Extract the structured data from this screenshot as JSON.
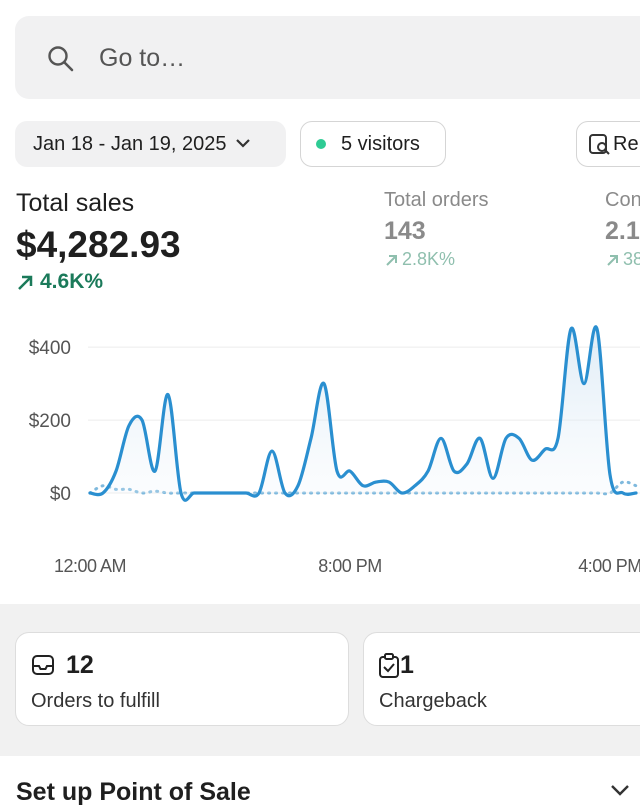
{
  "search": {
    "placeholder": "Go to…"
  },
  "filters": {
    "date_range": "Jan 18 - Jan 19, 2025",
    "visitors": "5 visitors",
    "report": "Re"
  },
  "metrics": [
    {
      "label": "Total sales",
      "value": "$4,282.93",
      "change": "4.6K%"
    },
    {
      "label": "Total orders",
      "value": "143",
      "change": "2.8K%"
    },
    {
      "label": "Con",
      "value": "2.1",
      "change": "38"
    }
  ],
  "chart_data": {
    "type": "line",
    "x": [
      0,
      1,
      2,
      3,
      4,
      5,
      6,
      7,
      8,
      9,
      10,
      11,
      12,
      13,
      14,
      15,
      16,
      17,
      18,
      19,
      20,
      21,
      22,
      23,
      24,
      25,
      26,
      27,
      28,
      29,
      30,
      31,
      32,
      33,
      34,
      35,
      36,
      37,
      38,
      39,
      40,
      41,
      42
    ],
    "series": [
      {
        "color": "#2a8fd0",
        "values": [
          0,
          0,
          60,
          185,
          200,
          60,
          270,
          0,
          0,
          0,
          0,
          0,
          0,
          0,
          115,
          0,
          20,
          150,
          300,
          60,
          60,
          20,
          30,
          30,
          0,
          20,
          60,
          150,
          60,
          80,
          150,
          40,
          150,
          150,
          90,
          120,
          150,
          450,
          300,
          450,
          50,
          0,
          0
        ]
      },
      {
        "color": "#7fb9dd",
        "dashed": true,
        "values": [
          0,
          20,
          10,
          10,
          0,
          5,
          0,
          0,
          0,
          0,
          0,
          0,
          0,
          0,
          0,
          0,
          0,
          0,
          0,
          0,
          0,
          0,
          0,
          0,
          0,
          0,
          0,
          0,
          0,
          0,
          0,
          0,
          0,
          0,
          0,
          0,
          0,
          0,
          0,
          0,
          0,
          30,
          20
        ]
      }
    ],
    "xlim": [
      0,
      42
    ],
    "xticks": [
      {
        "value": 0,
        "label": "12:00 AM"
      },
      {
        "value": 20,
        "label": "8:00 PM"
      },
      {
        "value": 40,
        "label": "4:00 PM"
      }
    ],
    "ylim": [
      0,
      480
    ],
    "yticks": [
      {
        "value": 0,
        "label": "$0"
      },
      {
        "value": 200,
        "label": "$200"
      },
      {
        "value": 400,
        "label": "$400"
      }
    ],
    "grid": true
  },
  "tasks": [
    {
      "count": "12",
      "label": "Orders to fulfill"
    },
    {
      "count": "1",
      "label": "Chargeback"
    }
  ],
  "setup": {
    "title": "Set up Point of Sale"
  }
}
